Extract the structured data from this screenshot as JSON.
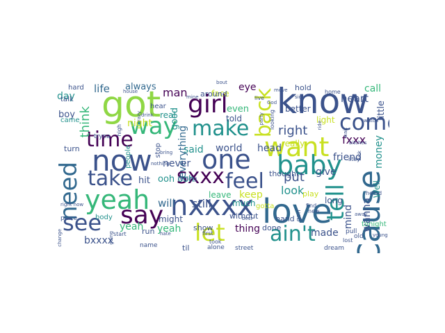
{
  "palette": {
    "deep_purple": "#440154",
    "indigo": "#3b528b",
    "blue": "#31688e",
    "teal": "#21918c",
    "green": "#35b779",
    "lime": "#8fd744",
    "yellow": "#c8e020"
  },
  "words": [
    {
      "text": "know",
      "color": "#3b528b"
    },
    {
      "text": "got",
      "color": "#8fd744"
    },
    {
      "text": "girl",
      "color": "#440154"
    },
    {
      "text": "back",
      "color": "#c8e020"
    },
    {
      "text": "way",
      "color": "#35b779"
    },
    {
      "text": "come",
      "color": "#3b528b"
    },
    {
      "text": "time",
      "color": "#440154"
    },
    {
      "text": "make",
      "color": "#21918c"
    },
    {
      "text": "want",
      "color": "#c8e020"
    },
    {
      "text": "now",
      "color": "#3b528b"
    },
    {
      "text": "one",
      "color": "#3b528b"
    },
    {
      "text": "Cause",
      "color": "#31688e"
    },
    {
      "text": "need",
      "color": "#31688e"
    },
    {
      "text": "baby",
      "color": "#21918c"
    },
    {
      "text": "take",
      "color": "#3b528b"
    },
    {
      "text": "sxxx",
      "color": "#440154"
    },
    {
      "text": "feel",
      "color": "#3b528b"
    },
    {
      "text": "tell",
      "color": "#21918c"
    },
    {
      "text": "yeah",
      "color": "#35b779"
    },
    {
      "text": "nxxxx",
      "color": "#3b528b"
    },
    {
      "text": "say",
      "color": "#440154"
    },
    {
      "text": "love",
      "color": "#31688e"
    },
    {
      "text": "see",
      "color": "#3b528b"
    },
    {
      "text": "let",
      "color": "#c8e020"
    },
    {
      "text": "ain't",
      "color": "#21918c"
    },
    {
      "text": "right",
      "color": "#3b528b"
    },
    {
      "text": "think",
      "color": "#35b779"
    },
    {
      "text": "man",
      "color": "#440154"
    },
    {
      "text": "life",
      "color": "#31688e"
    },
    {
      "text": "day",
      "color": "#21918c"
    },
    {
      "text": "call",
      "color": "#35b779"
    },
    {
      "text": "heart",
      "color": "#3b528b"
    },
    {
      "text": "eye",
      "color": "#440154"
    },
    {
      "text": "always",
      "color": "#31688e"
    },
    {
      "text": "night",
      "color": "#c8e020"
    },
    {
      "text": "boy",
      "color": "#3b528b"
    },
    {
      "text": "good",
      "color": "#21918c"
    },
    {
      "text": "everything",
      "color": "#31688e"
    },
    {
      "text": "even",
      "color": "#35b779"
    },
    {
      "text": "said",
      "color": "#21918c"
    },
    {
      "text": "world",
      "color": "#3b528b"
    },
    {
      "text": "head",
      "color": "#3b528b"
    },
    {
      "text": "fxxx",
      "color": "#440154"
    },
    {
      "text": "friend",
      "color": "#3b528b"
    },
    {
      "text": "money",
      "color": "#21918c"
    },
    {
      "text": "never",
      "color": "#3b528b"
    },
    {
      "text": "hit",
      "color": "#3b528b"
    },
    {
      "text": "ooh ooh",
      "color": "#21918c"
    },
    {
      "text": "put",
      "color": "#3b528b"
    },
    {
      "text": "give",
      "color": "#3b528b"
    },
    {
      "text": "look",
      "color": "#21918c"
    },
    {
      "text": "keep",
      "color": "#c8e020"
    },
    {
      "text": "will",
      "color": "#31688e"
    },
    {
      "text": "still",
      "color": "#3b528b"
    },
    {
      "text": "yeah",
      "color": "#35b779"
    },
    {
      "text": "yeah",
      "color": "#35b779"
    },
    {
      "text": "thing",
      "color": "#440154"
    },
    {
      "text": "mind",
      "color": "#3b528b"
    },
    {
      "text": "wanna",
      "color": "#3b528b"
    },
    {
      "text": "made",
      "color": "#3b528b"
    },
    {
      "text": "bxxxx",
      "color": "#3b528b"
    },
    {
      "text": "Well",
      "color": "#21918c"
    },
    {
      "text": "little",
      "color": "#3b528b"
    },
    {
      "text": "better",
      "color": "#3b528b"
    },
    {
      "text": "light",
      "color": "#c8e020"
    },
    {
      "text": "real",
      "color": "#21918c"
    },
    {
      "text": "told",
      "color": "#3b528b"
    },
    {
      "text": "face",
      "color": "#c8e020"
    },
    {
      "text": "hold",
      "color": "#3b528b"
    },
    {
      "text": "around",
      "color": "#3b528b"
    },
    {
      "text": "much",
      "color": "#21918c"
    },
    {
      "text": "really",
      "color": "#c8e020"
    },
    {
      "text": "thought",
      "color": "#3b528b"
    },
    {
      "text": "play",
      "color": "#c8e020"
    },
    {
      "text": "leave",
      "color": "#35b779"
    },
    {
      "text": "long",
      "color": "#3b528b"
    },
    {
      "text": "might",
      "color": "#3b528b"
    },
    {
      "text": "show",
      "color": "#3b528b"
    },
    {
      "text": "without",
      "color": "#3b528b"
    },
    {
      "text": "hand",
      "color": "#3b528b"
    },
    {
      "text": "done",
      "color": "#3b528b"
    },
    {
      "text": "talk",
      "color": "#3b528b"
    },
    {
      "text": "came",
      "color": "#21918c"
    },
    {
      "text": "turn",
      "color": "#3b528b"
    },
    {
      "text": "hard",
      "color": "#3b528b"
    },
    {
      "text": "hear",
      "color": "#3b528b"
    },
    {
      "text": "stop",
      "color": "#3b528b"
    },
    {
      "text": "people",
      "color": "#21918c"
    },
    {
      "text": "body",
      "color": "#21918c"
    },
    {
      "text": "run",
      "color": "#3b528b"
    },
    {
      "text": "name",
      "color": "#3b528b"
    },
    {
      "text": "til",
      "color": "#3b528b"
    },
    {
      "text": "gotta",
      "color": "#c8e020"
    },
    {
      "text": "gon'",
      "color": "#3b528b"
    },
    {
      "text": "alone",
      "color": "#3b528b"
    },
    {
      "text": "street",
      "color": "#3b528b"
    },
    {
      "text": "dream",
      "color": "#3b528b"
    },
    {
      "text": "place",
      "color": "#3b528b"
    },
    {
      "text": "start",
      "color": "#3b528b"
    },
    {
      "text": "feeling",
      "color": "#3b528b"
    },
    {
      "text": "nothing",
      "color": "#3b528b"
    },
    {
      "text": "tonight",
      "color": "#35b779"
    },
    {
      "text": "pull",
      "color": "#3b528b"
    },
    {
      "text": "old",
      "color": "#3b528b"
    },
    {
      "text": "stay",
      "color": "#3b528b"
    },
    {
      "text": "heard",
      "color": "#3b528b"
    },
    {
      "text": "find",
      "color": "#3b528b"
    },
    {
      "text": "new",
      "color": "#3b528b"
    },
    {
      "text": "live",
      "color": "#3b528b"
    },
    {
      "text": "crazy",
      "color": "#3b528b"
    },
    {
      "text": "tryna",
      "color": "#3b528b"
    },
    {
      "text": "high",
      "color": "#3b528b"
    },
    {
      "text": "party",
      "color": "#3b528b"
    },
    {
      "text": "looking",
      "color": "#3b528b"
    },
    {
      "text": "home",
      "color": "#3b528b"
    },
    {
      "text": "wait",
      "color": "#3b528b"
    },
    {
      "text": "watch",
      "color": "#3b528b"
    },
    {
      "text": "away",
      "color": "#3b528b"
    },
    {
      "text": "move",
      "color": "#3b528b"
    },
    {
      "text": "took",
      "color": "#3b528b"
    },
    {
      "text": "first",
      "color": "#3b528b"
    },
    {
      "text": "lost",
      "color": "#3b528b"
    },
    {
      "text": "change",
      "color": "#3b528b"
    },
    {
      "text": "right now",
      "color": "#3b528b"
    },
    {
      "text": "going",
      "color": "#3b528b"
    },
    {
      "text": "hate",
      "color": "#3b528b"
    },
    {
      "text": "God",
      "color": "#3b528b"
    },
    {
      "text": "best",
      "color": "#3b528b"
    },
    {
      "text": "bout",
      "color": "#3b528b"
    },
    {
      "text": "house",
      "color": "#3b528b"
    },
    {
      "text": "ride",
      "color": "#3b528b"
    },
    {
      "text": "fuck",
      "color": "#3b528b"
    },
    {
      "text": "drink",
      "color": "#3b528b"
    },
    {
      "text": "bring",
      "color": "#3b528b"
    },
    {
      "text": "mine",
      "color": "#3b528b"
    },
    {
      "text": "side",
      "color": "#3b528b"
    },
    {
      "text": "bitches",
      "color": "#3b528b"
    },
    {
      "text": "young",
      "color": "#3b528b"
    }
  ]
}
